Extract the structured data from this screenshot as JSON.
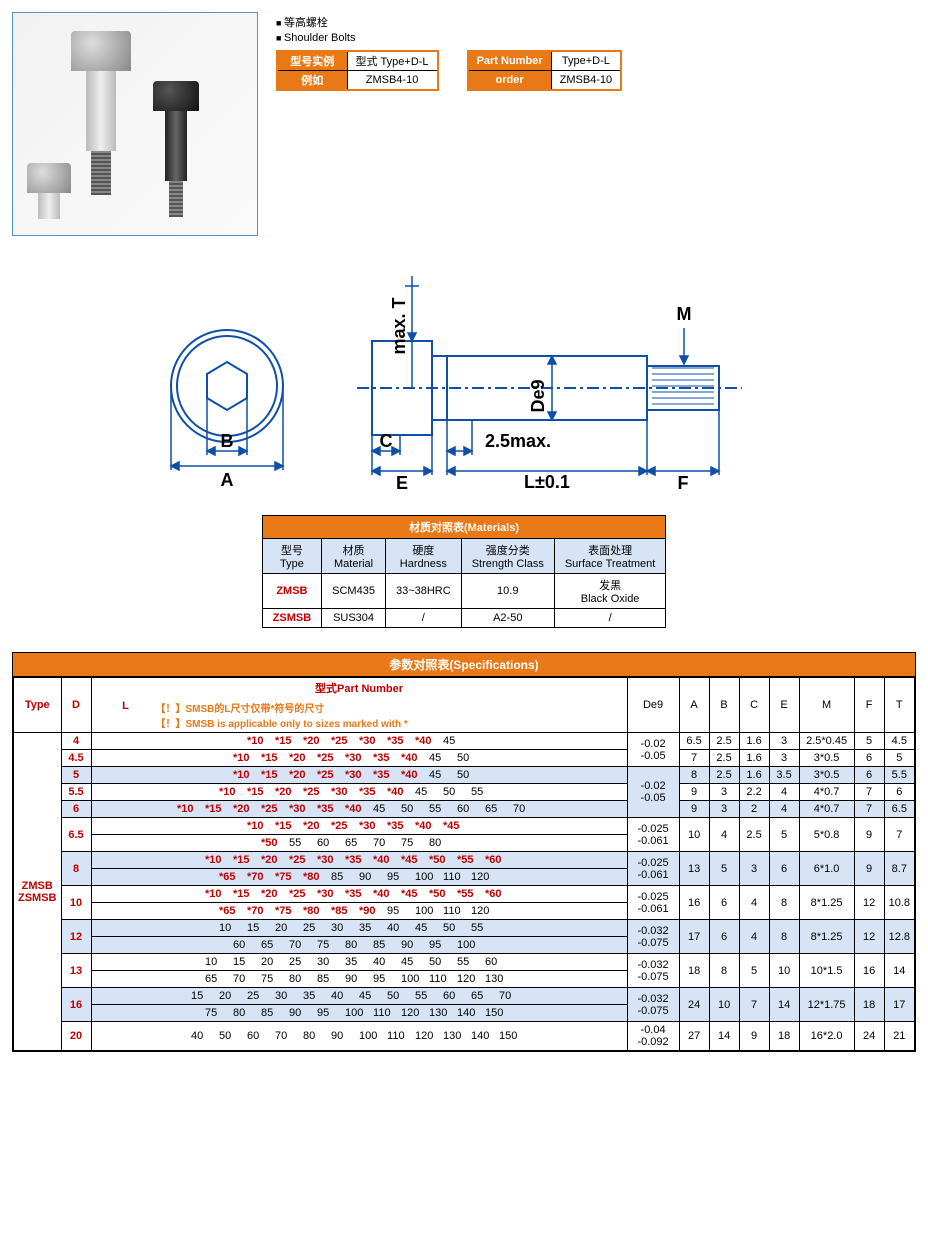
{
  "header": {
    "bullet1": "等高螺栓",
    "bullet2": "Shoulder Bolts",
    "pn_left": {
      "r1c1": "型号实例",
      "r1c2": "型式 Type+D-L",
      "r2c1": "例如",
      "r2c2": "ZMSB4-10"
    },
    "pn_right": {
      "r1c1": "Part Number",
      "r1c2": "Type+D-L",
      "r2c1": "order",
      "r2c2": "ZMSB4-10"
    }
  },
  "diagram": {
    "labels": {
      "A": "A",
      "B": "B",
      "C": "C",
      "E": "E",
      "L": "L±0.1",
      "F": "F",
      "M": "M",
      "De9": "De9",
      "maxT": "max. T",
      "maxSh": "2.5max."
    },
    "colors": {
      "stroke": "#0f4fa8",
      "fill_head": "#d6e4f5"
    }
  },
  "materials": {
    "title": "材质对照表(Materials)",
    "cols": [
      {
        "zh": "型号",
        "en": "Type"
      },
      {
        "zh": "材质",
        "en": "Material"
      },
      {
        "zh": "硬度",
        "en": "Hardness"
      },
      {
        "zh": "强度分类",
        "en": "Strength Class"
      },
      {
        "zh": "表面处理",
        "en": "Surface Treatment"
      }
    ],
    "rows": [
      {
        "type": "ZMSB",
        "mat": "SCM435",
        "hard": "33~38HRC",
        "cls": "10.9",
        "surf": "发黑\nBlack Oxide"
      },
      {
        "type": "ZSMSB",
        "mat": "SUS304",
        "hard": "/",
        "cls": "A2-50",
        "surf": "/"
      }
    ]
  },
  "spec": {
    "title": "参数对照表(Specifications)",
    "pn_header": "型式Part Number",
    "note1": "【！】SMSB的L尺寸仅带*符号的尺寸",
    "note2": "【！】SMSB is applicable only to sizes marked with *",
    "type_header": "Type",
    "d_header": "D",
    "l_header": "L",
    "dim_headers": [
      "De9",
      "A",
      "B",
      "C",
      "E",
      "M",
      "F",
      "T"
    ],
    "type_label": "ZMSB\nZSMSB",
    "rows": [
      {
        "d": "4",
        "blue": false,
        "L": [
          [
            "*10",
            1
          ],
          [
            "*15",
            1
          ],
          [
            "*20",
            1
          ],
          [
            "*25",
            1
          ],
          [
            "*30",
            1
          ],
          [
            "*35",
            1
          ],
          [
            "*40",
            1
          ],
          [
            "45",
            0
          ]
        ],
        "de9": "-0.02\n-0.05",
        "de9_span": 2,
        "dims": [
          "6.5",
          "2.5",
          "1.6",
          "3",
          "2.5*0.45",
          "5",
          "4.5"
        ]
      },
      {
        "d": "4.5",
        "blue": false,
        "L": [
          [
            "*10",
            1
          ],
          [
            "*15",
            1
          ],
          [
            "*20",
            1
          ],
          [
            "*25",
            1
          ],
          [
            "*30",
            1
          ],
          [
            "*35",
            1
          ],
          [
            "*40",
            1
          ],
          [
            "45",
            0
          ],
          [
            "50",
            0
          ]
        ],
        "dims": [
          "7",
          "2.5",
          "1.6",
          "3",
          "3*0.5",
          "6",
          "5"
        ]
      },
      {
        "d": "5",
        "blue": true,
        "L": [
          [
            "*10",
            1
          ],
          [
            "*15",
            1
          ],
          [
            "*20",
            1
          ],
          [
            "*25",
            1
          ],
          [
            "*30",
            1
          ],
          [
            "*35",
            1
          ],
          [
            "*40",
            1
          ],
          [
            "45",
            0
          ],
          [
            "50",
            0
          ]
        ],
        "de9": "-0.02\n-0.05",
        "de9_span": 3,
        "dims": [
          "8",
          "2.5",
          "1.6",
          "3.5",
          "3*0.5",
          "6",
          "5.5"
        ]
      },
      {
        "d": "5.5",
        "blue": false,
        "L": [
          [
            "*10",
            1
          ],
          [
            "*15",
            1
          ],
          [
            "*20",
            1
          ],
          [
            "*25",
            1
          ],
          [
            "*30",
            1
          ],
          [
            "*35",
            1
          ],
          [
            "*40",
            1
          ],
          [
            "45",
            0
          ],
          [
            "50",
            0
          ],
          [
            "55",
            0
          ]
        ],
        "dims": [
          "9",
          "3",
          "2.2",
          "4",
          "4*0.7",
          "7",
          "6"
        ]
      },
      {
        "d": "6",
        "blue": true,
        "L": [
          [
            "*10",
            1
          ],
          [
            "*15",
            1
          ],
          [
            "*20",
            1
          ],
          [
            "*25",
            1
          ],
          [
            "*30",
            1
          ],
          [
            "*35",
            1
          ],
          [
            "*40",
            1
          ],
          [
            "45",
            0
          ],
          [
            "50",
            0
          ],
          [
            "55",
            0
          ],
          [
            "60",
            0
          ],
          [
            "65",
            0
          ],
          [
            "70",
            0
          ]
        ],
        "dims": [
          "9",
          "3",
          "2",
          "4",
          "4*0.7",
          "7",
          "6.5"
        ]
      },
      {
        "d": "6.5",
        "blue": false,
        "two": true,
        "L1": [
          [
            "*10",
            1
          ],
          [
            "*15",
            1
          ],
          [
            "*20",
            1
          ],
          [
            "*25",
            1
          ],
          [
            "*30",
            1
          ],
          [
            "*35",
            1
          ],
          [
            "*40",
            1
          ],
          [
            "*45",
            1
          ]
        ],
        "L2": [
          [
            "*50",
            1
          ],
          [
            "55",
            0
          ],
          [
            "60",
            0
          ],
          [
            "65",
            0
          ],
          [
            "70",
            0
          ],
          [
            "75",
            0
          ],
          [
            "80",
            0
          ]
        ],
        "de9": "-0.025\n-0.061",
        "de9_span": 1,
        "dims": [
          "10",
          "4",
          "2.5",
          "5",
          "5*0.8",
          "9",
          "7"
        ]
      },
      {
        "d": "8",
        "blue": true,
        "two": true,
        "L1": [
          [
            "*10",
            1
          ],
          [
            "*15",
            1
          ],
          [
            "*20",
            1
          ],
          [
            "*25",
            1
          ],
          [
            "*30",
            1
          ],
          [
            "*35",
            1
          ],
          [
            "*40",
            1
          ],
          [
            "*45",
            1
          ],
          [
            "*50",
            1
          ],
          [
            "*55",
            1
          ],
          [
            "*60",
            1
          ]
        ],
        "L2": [
          [
            "*65",
            1
          ],
          [
            "*70",
            1
          ],
          [
            "*75",
            1
          ],
          [
            "*80",
            1
          ],
          [
            "85",
            0
          ],
          [
            "90",
            0
          ],
          [
            "95",
            0
          ],
          [
            "100",
            0
          ],
          [
            "110",
            0
          ],
          [
            "120",
            0
          ]
        ],
        "de9": "-0.025\n-0.061",
        "de9_span": 1,
        "dims": [
          "13",
          "5",
          "3",
          "6",
          "6*1.0",
          "9",
          "8.7"
        ]
      },
      {
        "d": "10",
        "blue": false,
        "two": true,
        "L1": [
          [
            "*10",
            1
          ],
          [
            "*15",
            1
          ],
          [
            "*20",
            1
          ],
          [
            "*25",
            1
          ],
          [
            "*30",
            1
          ],
          [
            "*35",
            1
          ],
          [
            "*40",
            1
          ],
          [
            "*45",
            1
          ],
          [
            "*50",
            1
          ],
          [
            "*55",
            1
          ],
          [
            "*60",
            1
          ]
        ],
        "L2": [
          [
            "*65",
            1
          ],
          [
            "*70",
            1
          ],
          [
            "*75",
            1
          ],
          [
            "*80",
            1
          ],
          [
            "*85",
            1
          ],
          [
            "*90",
            1
          ],
          [
            "95",
            0
          ],
          [
            "100",
            0
          ],
          [
            "110",
            0
          ],
          [
            "120",
            0
          ]
        ],
        "de9": "-0.025\n-0.061",
        "de9_span": 1,
        "dims": [
          "16",
          "6",
          "4",
          "8",
          "8*1.25",
          "12",
          "10.8"
        ]
      },
      {
        "d": "12",
        "blue": true,
        "two": true,
        "L1": [
          [
            "10",
            0
          ],
          [
            "15",
            0
          ],
          [
            "20",
            0
          ],
          [
            "25",
            0
          ],
          [
            "30",
            0
          ],
          [
            "35",
            0
          ],
          [
            "40",
            0
          ],
          [
            "45",
            0
          ],
          [
            "50",
            0
          ],
          [
            "55",
            0
          ]
        ],
        "L2": [
          [
            "60",
            0
          ],
          [
            "65",
            0
          ],
          [
            "70",
            0
          ],
          [
            "75",
            0
          ],
          [
            "80",
            0
          ],
          [
            "85",
            0
          ],
          [
            "90",
            0
          ],
          [
            "95",
            0
          ],
          [
            "100",
            0
          ]
        ],
        "de9": "-0.032\n-0.075",
        "de9_span": 1,
        "dims": [
          "17",
          "6",
          "4",
          "8",
          "8*1.25",
          "12",
          "12.8"
        ]
      },
      {
        "d": "13",
        "blue": false,
        "two": true,
        "L1": [
          [
            "10",
            0
          ],
          [
            "15",
            0
          ],
          [
            "20",
            0
          ],
          [
            "25",
            0
          ],
          [
            "30",
            0
          ],
          [
            "35",
            0
          ],
          [
            "40",
            0
          ],
          [
            "45",
            0
          ],
          [
            "50",
            0
          ],
          [
            "55",
            0
          ],
          [
            "60",
            0
          ]
        ],
        "L2": [
          [
            "65",
            0
          ],
          [
            "70",
            0
          ],
          [
            "75",
            0
          ],
          [
            "80",
            0
          ],
          [
            "85",
            0
          ],
          [
            "90",
            0
          ],
          [
            "95",
            0
          ],
          [
            "100",
            0
          ],
          [
            "110",
            0
          ],
          [
            "120",
            0
          ],
          [
            "130",
            0
          ]
        ],
        "de9": "-0.032\n-0.075",
        "de9_span": 1,
        "dims": [
          "18",
          "8",
          "5",
          "10",
          "10*1.5",
          "16",
          "14"
        ]
      },
      {
        "d": "16",
        "blue": true,
        "two": true,
        "L1": [
          [
            "15",
            0
          ],
          [
            "20",
            0
          ],
          [
            "25",
            0
          ],
          [
            "30",
            0
          ],
          [
            "35",
            0
          ],
          [
            "40",
            0
          ],
          [
            "45",
            0
          ],
          [
            "50",
            0
          ],
          [
            "55",
            0
          ],
          [
            "60",
            0
          ],
          [
            "65",
            0
          ],
          [
            "70",
            0
          ]
        ],
        "L2": [
          [
            "75",
            0
          ],
          [
            "80",
            0
          ],
          [
            "85",
            0
          ],
          [
            "90",
            0
          ],
          [
            "95",
            0
          ],
          [
            "100",
            0
          ],
          [
            "110",
            0
          ],
          [
            "120",
            0
          ],
          [
            "130",
            0
          ],
          [
            "140",
            0
          ],
          [
            "150",
            0
          ]
        ],
        "de9": "-0.032\n-0.075",
        "de9_span": 1,
        "dims": [
          "24",
          "10",
          "7",
          "14",
          "12*1.75",
          "18",
          "17"
        ]
      },
      {
        "d": "20",
        "blue": false,
        "L": [
          [
            "40",
            0
          ],
          [
            "50",
            0
          ],
          [
            "60",
            0
          ],
          [
            "70",
            0
          ],
          [
            "80",
            0
          ],
          [
            "90",
            0
          ],
          [
            "100",
            0
          ],
          [
            "110",
            0
          ],
          [
            "120",
            0
          ],
          [
            "130",
            0
          ],
          [
            "140",
            0
          ],
          [
            "150",
            0
          ]
        ],
        "de9": "-0.04\n-0.092",
        "de9_span": 1,
        "dims": [
          "27",
          "14",
          "9",
          "18",
          "16*2.0",
          "24",
          "21"
        ]
      }
    ]
  }
}
